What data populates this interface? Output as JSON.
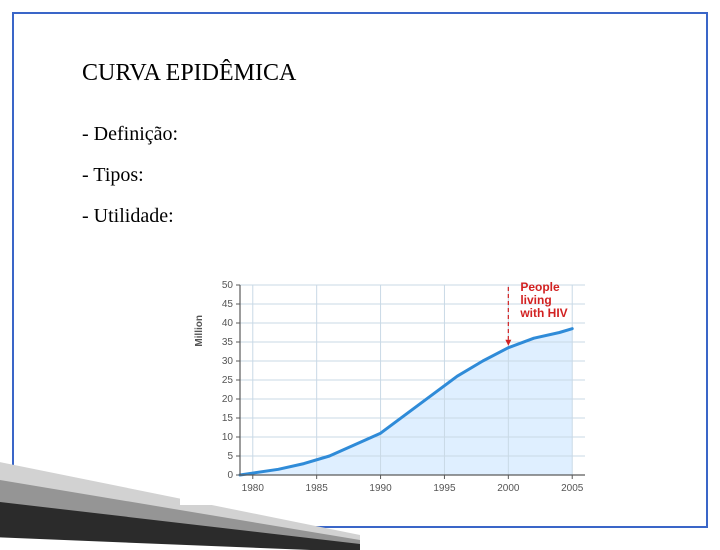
{
  "title": "CURVA EPIDÊMICA",
  "bullets": [
    "- Definição:",
    "- Tipos:",
    "- Utilidade:"
  ],
  "chart": {
    "type": "area",
    "y_axis_label": "Million",
    "y_ticks": [
      0,
      5,
      10,
      15,
      20,
      25,
      30,
      35,
      40,
      45,
      50
    ],
    "ylim": [
      0,
      50
    ],
    "x_ticks": [
      1980,
      1985,
      1990,
      1995,
      2000,
      2005
    ],
    "xlim": [
      1979,
      2006
    ],
    "series": {
      "name": "People living with HIV",
      "points": [
        {
          "x": 1979,
          "y": 0
        },
        {
          "x": 1980,
          "y": 0.5
        },
        {
          "x": 1982,
          "y": 1.5
        },
        {
          "x": 1984,
          "y": 3
        },
        {
          "x": 1986,
          "y": 5
        },
        {
          "x": 1988,
          "y": 8
        },
        {
          "x": 1990,
          "y": 11
        },
        {
          "x": 1992,
          "y": 16
        },
        {
          "x": 1994,
          "y": 21
        },
        {
          "x": 1996,
          "y": 26
        },
        {
          "x": 1998,
          "y": 30
        },
        {
          "x": 2000,
          "y": 33.5
        },
        {
          "x": 2002,
          "y": 36
        },
        {
          "x": 2004,
          "y": 37.5
        },
        {
          "x": 2005,
          "y": 38.5
        }
      ],
      "line_color": "#2f8bd8",
      "line_width": 3,
      "fill_color": "#dfefff",
      "grid_color": "#c9d9e6",
      "axis_color": "#5a5a5a",
      "tick_font_size": 10,
      "tick_color": "#555555",
      "y_axis_label_fontsize": 10,
      "annotation_color": "#d22222",
      "annotation_fontsize": 12,
      "annotation_x": 2000,
      "annotation_arrow_from_y": 50,
      "annotation_arrow_to_y": 34
    },
    "background_color": "#ffffff"
  },
  "decor": {
    "stripe_dark": "#2b2b2b",
    "stripe_mid": "#959595",
    "stripe_light": "#d2d2d2"
  }
}
